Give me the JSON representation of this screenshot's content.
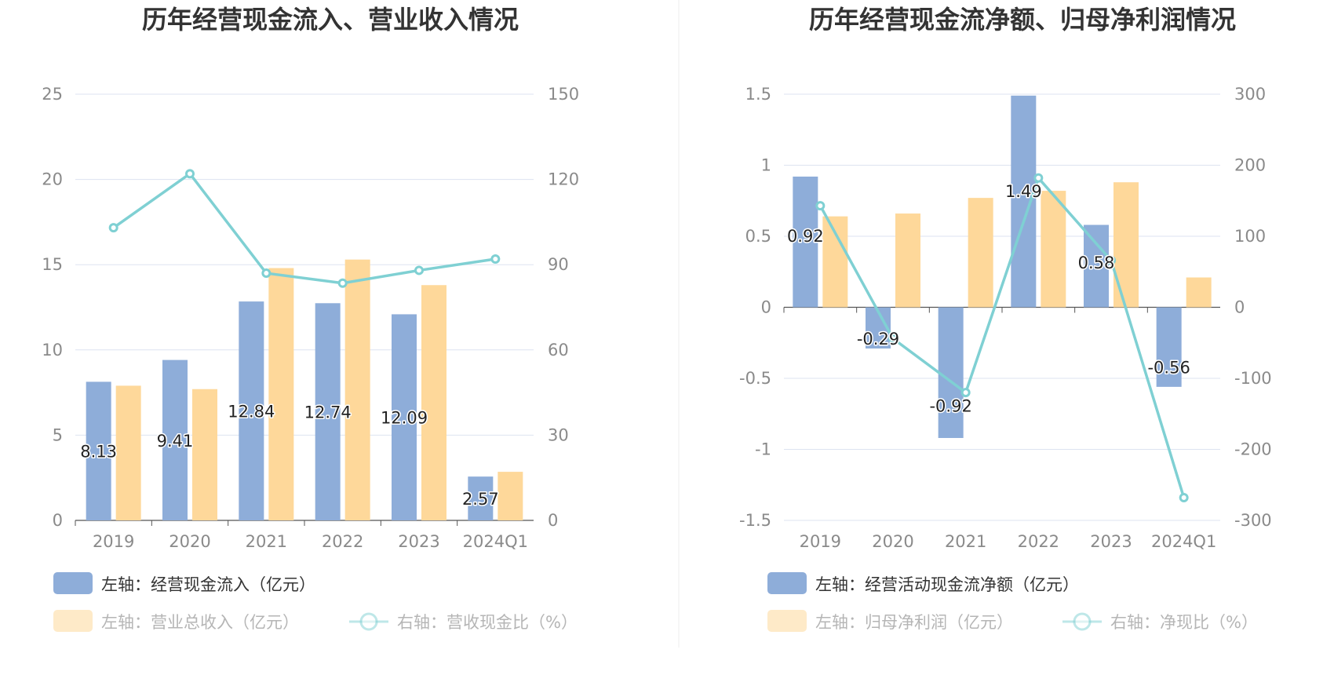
{
  "colors": {
    "bar_primary": "#8eadd9",
    "bar_secondary": "#fed89a",
    "line": "#7fd0d3",
    "grid": "#dde3f0",
    "axis": "#555555"
  },
  "chart_data": [
    {
      "type": "bar",
      "title": "历年经营现金流入、营业收入情况",
      "categories": [
        "2019",
        "2020",
        "2021",
        "2022",
        "2023",
        "2024Q1"
      ],
      "left_axis": {
        "ylim": [
          0,
          25
        ],
        "ticks": [
          "0",
          "5",
          "10",
          "15",
          "20",
          "25"
        ]
      },
      "right_axis": {
        "ylim": [
          0,
          150
        ],
        "ticks": [
          "0",
          "30",
          "60",
          "90",
          "120",
          "150"
        ]
      },
      "series": [
        {
          "name": "左轴：经营现金流入（亿元）",
          "kind": "bar",
          "axis": "left",
          "values": [
            8.13,
            9.41,
            12.84,
            12.74,
            12.09,
            2.57
          ],
          "labels": [
            "8.13",
            "9.41",
            "12.84",
            "12.74",
            "12.09",
            "2.57"
          ]
        },
        {
          "name": "左轴：营业总收入（亿元）",
          "kind": "bar",
          "axis": "left",
          "values": [
            7.9,
            7.7,
            14.8,
            15.3,
            13.8,
            2.85
          ]
        },
        {
          "name": "右轴：营收现金比（%）",
          "kind": "line",
          "axis": "right",
          "values": [
            103,
            122,
            87,
            83.5,
            88,
            92
          ]
        }
      ],
      "legend_position": "bottom"
    },
    {
      "type": "bar",
      "title": "历年经营现金流净额、归母净利润情况",
      "categories": [
        "2019",
        "2020",
        "2021",
        "2022",
        "2023",
        "2024Q1"
      ],
      "left_axis": {
        "ylim": [
          -1.5,
          1.5
        ],
        "ticks": [
          "-1.5",
          "-1",
          "-0.5",
          "0",
          "0.5",
          "1",
          "1.5"
        ]
      },
      "right_axis": {
        "ylim": [
          -300,
          300
        ],
        "ticks": [
          "-300",
          "-200",
          "-100",
          "0",
          "100",
          "200",
          "300"
        ]
      },
      "series": [
        {
          "name": "左轴：经营活动现金流净额（亿元）",
          "kind": "bar",
          "axis": "left",
          "values": [
            0.92,
            -0.29,
            -0.92,
            1.49,
            0.58,
            -0.56
          ],
          "labels": [
            "0.92",
            "-0.29",
            "-0.92",
            "1.49",
            "0.58",
            "-0.56"
          ]
        },
        {
          "name": "左轴：归母净利润（亿元）",
          "kind": "bar",
          "axis": "left",
          "values": [
            0.64,
            0.66,
            0.77,
            0.82,
            0.88,
            0.21
          ]
        },
        {
          "name": "右轴：净现比（%）",
          "kind": "line",
          "axis": "right",
          "values": [
            143,
            -44,
            -120,
            182,
            66,
            -268
          ]
        }
      ],
      "legend_position": "bottom"
    }
  ]
}
